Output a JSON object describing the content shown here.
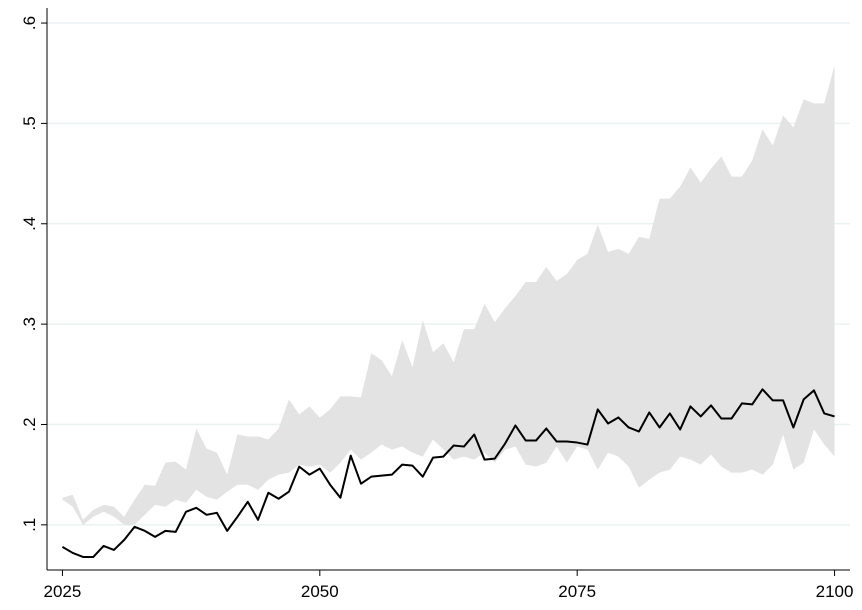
{
  "chart_data": {
    "type": "line",
    "x": [
      2025,
      2026,
      2027,
      2028,
      2029,
      2030,
      2031,
      2032,
      2033,
      2034,
      2035,
      2036,
      2037,
      2038,
      2039,
      2040,
      2041,
      2042,
      2043,
      2044,
      2045,
      2046,
      2047,
      2048,
      2049,
      2050,
      2051,
      2052,
      2053,
      2054,
      2055,
      2056,
      2057,
      2058,
      2059,
      2060,
      2061,
      2062,
      2063,
      2064,
      2065,
      2066,
      2067,
      2068,
      2069,
      2070,
      2071,
      2072,
      2073,
      2074,
      2075,
      2076,
      2077,
      2078,
      2079,
      2080,
      2081,
      2082,
      2083,
      2084,
      2085,
      2086,
      2087,
      2088,
      2089,
      2090,
      2091,
      2092,
      2093,
      2094,
      2095,
      2096,
      2097,
      2098,
      2099,
      2100
    ],
    "band": {
      "color": "#e3e3e3",
      "upper": [
        0.127,
        0.13,
        0.105,
        0.115,
        0.12,
        0.118,
        0.108,
        0.125,
        0.14,
        0.139,
        0.162,
        0.163,
        0.155,
        0.196,
        0.176,
        0.172,
        0.15,
        0.19,
        0.188,
        0.188,
        0.185,
        0.196,
        0.225,
        0.21,
        0.218,
        0.207,
        0.215,
        0.228,
        0.228,
        0.227,
        0.271,
        0.264,
        0.248,
        0.284,
        0.257,
        0.304,
        0.272,
        0.281,
        0.262,
        0.295,
        0.295,
        0.32,
        0.302,
        0.316,
        0.328,
        0.342,
        0.342,
        0.357,
        0.343,
        0.35,
        0.364,
        0.37,
        0.399,
        0.372,
        0.375,
        0.37,
        0.387,
        0.385,
        0.425,
        0.425,
        0.437,
        0.456,
        0.441,
        0.455,
        0.467,
        0.447,
        0.447,
        0.463,
        0.494,
        0.478,
        0.508,
        0.496,
        0.524,
        0.52,
        0.52,
        0.558
      ],
      "lower": [
        0.125,
        0.118,
        0.1,
        0.108,
        0.113,
        0.108,
        0.1,
        0.1,
        0.11,
        0.12,
        0.118,
        0.125,
        0.122,
        0.135,
        0.128,
        0.125,
        0.133,
        0.14,
        0.14,
        0.135,
        0.145,
        0.15,
        0.152,
        0.16,
        0.158,
        0.16,
        0.152,
        0.162,
        0.175,
        0.165,
        0.172,
        0.18,
        0.175,
        0.178,
        0.172,
        0.168,
        0.185,
        0.175,
        0.165,
        0.168,
        0.165,
        0.172,
        0.162,
        0.175,
        0.178,
        0.16,
        0.158,
        0.162,
        0.178,
        0.162,
        0.178,
        0.175,
        0.155,
        0.172,
        0.168,
        0.158,
        0.137,
        0.145,
        0.152,
        0.155,
        0.168,
        0.165,
        0.16,
        0.17,
        0.158,
        0.152,
        0.152,
        0.155,
        0.15,
        0.16,
        0.19,
        0.155,
        0.162,
        0.195,
        0.18,
        0.168
      ]
    },
    "series": [
      {
        "color": "#000000",
        "values": [
          0.078,
          0.072,
          0.068,
          0.068,
          0.079,
          0.075,
          0.085,
          0.098,
          0.094,
          0.088,
          0.094,
          0.093,
          0.113,
          0.117,
          0.11,
          0.112,
          0.094,
          0.108,
          0.123,
          0.105,
          0.132,
          0.126,
          0.133,
          0.158,
          0.15,
          0.156,
          0.14,
          0.127,
          0.169,
          0.141,
          0.148,
          0.149,
          0.15,
          0.16,
          0.159,
          0.148,
          0.167,
          0.168,
          0.179,
          0.178,
          0.19,
          0.165,
          0.166,
          0.181,
          0.199,
          0.184,
          0.184,
          0.196,
          0.183,
          0.183,
          0.182,
          0.18,
          0.215,
          0.201,
          0.207,
          0.197,
          0.193,
          0.212,
          0.197,
          0.211,
          0.195,
          0.218,
          0.208,
          0.219,
          0.206,
          0.206,
          0.221,
          0.22,
          0.235,
          0.224,
          0.224,
          0.197,
          0.225,
          0.234,
          0.211,
          0.208
        ]
      }
    ],
    "xlim": [
      2023.5,
      2101.5
    ],
    "xticks": [
      2025,
      2050,
      2075,
      2100
    ],
    "ylim": [
      0.055,
      0.615
    ],
    "yticks": [
      {
        "value": 0.1,
        "label": ".1"
      },
      {
        "value": 0.2,
        "label": ".2"
      },
      {
        "value": 0.3,
        "label": ".3"
      },
      {
        "value": 0.4,
        "label": ".4"
      },
      {
        "value": 0.5,
        "label": ".5"
      },
      {
        "value": 0.6,
        "label": ".6"
      }
    ],
    "grid": true
  }
}
